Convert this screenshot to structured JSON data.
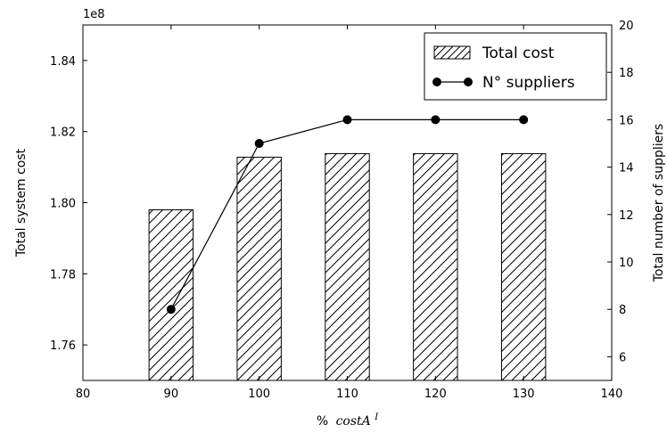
{
  "chart_data": {
    "type": "bar",
    "x": [
      90,
      100,
      110,
      120,
      130
    ],
    "series": [
      {
        "name": "Total cost",
        "type": "bar",
        "axis": "left",
        "values": [
          179800000,
          181280000,
          181380000,
          181380000,
          181380000
        ],
        "fill": "hatch"
      },
      {
        "name": "N° suppliers",
        "type": "line",
        "axis": "right",
        "values": [
          8,
          15,
          16,
          16,
          16
        ],
        "marker": "circle"
      }
    ],
    "xlabel_prefix": "%",
    "xlabel_math": "costA",
    "xlabel_sup": "I",
    "ylabel": "Total system cost",
    "y2label": "Total number of suppliers",
    "y_offset_label": "1e8",
    "xlim": [
      80,
      140
    ],
    "ylim": [
      175000000,
      185000000
    ],
    "y2lim": [
      5,
      20
    ],
    "x_ticks": [
      80,
      90,
      100,
      110,
      120,
      130,
      140
    ],
    "y_ticks": [
      1.76,
      1.78,
      1.8,
      1.82,
      1.84
    ],
    "y_tick_labels": [
      "1.76",
      "1.78",
      "1.80",
      "1.82",
      "1.84"
    ],
    "y2_ticks": [
      6,
      8,
      10,
      12,
      14,
      16,
      18,
      20
    ],
    "bar_width": 5,
    "grid": false,
    "legend": "top-right",
    "colors": {
      "bar_edge": "#000000",
      "bar_fill": "#ffffff",
      "line": "#000000",
      "marker": "#000000"
    }
  }
}
